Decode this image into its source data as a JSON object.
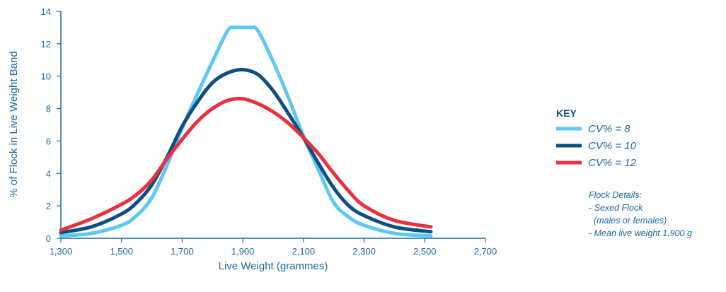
{
  "chart_data": {
    "type": "line",
    "xlabel": "Live Weight (grammes)",
    "ylabel": "% of Flock in Live Weight Band",
    "xlim": [
      1300,
      2700
    ],
    "ylim": [
      0,
      14
    ],
    "x_ticks": [
      1300,
      1500,
      1700,
      1900,
      2100,
      2300,
      2500,
      2700
    ],
    "x_tick_labels": [
      "1,300",
      "1,500",
      "1,700",
      "1,900",
      "2,100",
      "2,300",
      "2,500",
      "2,700"
    ],
    "y_ticks": [
      0,
      2,
      4,
      6,
      8,
      10,
      12,
      14
    ],
    "y_tick_labels": [
      "0",
      "2",
      "4",
      "6",
      "8",
      "10",
      "12",
      "14"
    ],
    "grid": false,
    "legend_title": "KEY",
    "legend_placement": "right",
    "series": [
      {
        "name": "CV% = 8",
        "color": "#5ec8f2",
        "x": [
          1300,
          1400,
          1500,
          1550,
          1600,
          1650,
          1700,
          1750,
          1800,
          1850,
          1875,
          1900,
          1925,
          1950,
          2000,
          2050,
          2100,
          2150,
          2200,
          2250,
          2300,
          2400,
          2520
        ],
        "y": [
          0.15,
          0.3,
          0.8,
          1.4,
          2.5,
          4.5,
          6.8,
          8.9,
          10.9,
          12.8,
          13.0,
          13.0,
          13.0,
          12.8,
          10.9,
          8.7,
          6.3,
          4.2,
          2.2,
          1.3,
          0.8,
          0.3,
          0.15
        ]
      },
      {
        "name": "CV% = 10",
        "color": "#0d4f85",
        "x": [
          1300,
          1400,
          1500,
          1550,
          1600,
          1650,
          1700,
          1750,
          1800,
          1850,
          1900,
          1950,
          2000,
          2050,
          2100,
          2150,
          2200,
          2250,
          2300,
          2400,
          2520
        ],
        "y": [
          0.35,
          0.7,
          1.5,
          2.2,
          3.3,
          5.0,
          6.9,
          8.4,
          9.6,
          10.2,
          10.4,
          10.1,
          9.1,
          7.7,
          6.2,
          4.6,
          3.1,
          2.0,
          1.4,
          0.7,
          0.4
        ]
      },
      {
        "name": "CV% = 12",
        "color": "#e8303f",
        "x": [
          1300,
          1400,
          1500,
          1550,
          1600,
          1650,
          1700,
          1750,
          1800,
          1850,
          1900,
          1950,
          2000,
          2050,
          2100,
          2150,
          2200,
          2250,
          2300,
          2400,
          2520
        ],
        "y": [
          0.5,
          1.2,
          2.1,
          2.7,
          3.6,
          4.9,
          6.1,
          7.2,
          8.0,
          8.5,
          8.6,
          8.3,
          7.8,
          7.1,
          6.2,
          5.2,
          4.0,
          2.9,
          2.0,
          1.1,
          0.7
        ]
      }
    ]
  },
  "notes": {
    "heading": "Flock Details:",
    "lines": [
      "- Sexed Flock",
      "  (males or females)",
      "- Mean live weight 1,900 g"
    ]
  }
}
